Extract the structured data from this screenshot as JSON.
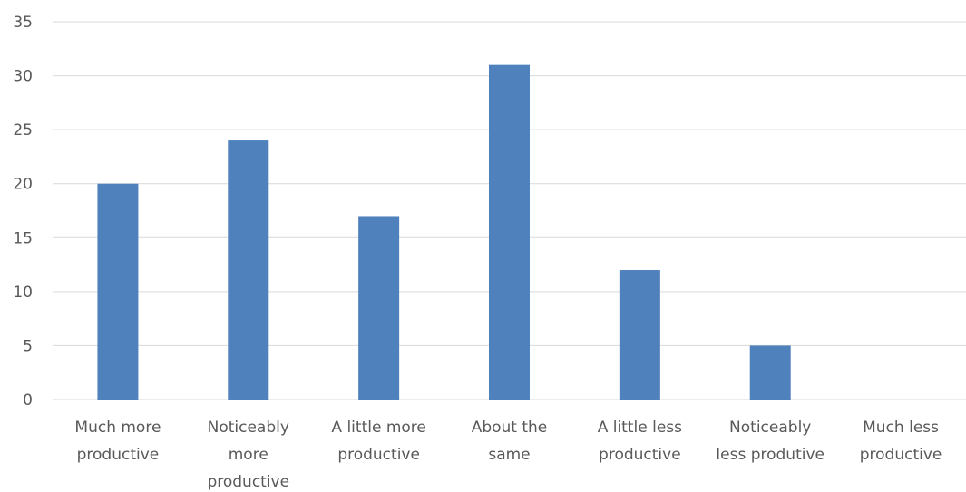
{
  "chart_data": {
    "type": "bar",
    "categories": [
      [
        "Much more",
        "productive"
      ],
      [
        "Noticeably",
        "more",
        "productive"
      ],
      [
        "A little more",
        "productive"
      ],
      [
        "About the",
        "same"
      ],
      [
        "A little less",
        "productive"
      ],
      [
        "Noticeably",
        "less produtive"
      ],
      [
        "Much less",
        "productive"
      ]
    ],
    "values": [
      20,
      24,
      17,
      31,
      12,
      5,
      0
    ],
    "ylim": [
      0,
      35
    ],
    "yticks": [
      0,
      5,
      10,
      15,
      20,
      25,
      30,
      35
    ],
    "grid": true,
    "legend": "none",
    "bar_color": "#4f81bd",
    "title": "",
    "xlabel": "",
    "ylabel": ""
  }
}
